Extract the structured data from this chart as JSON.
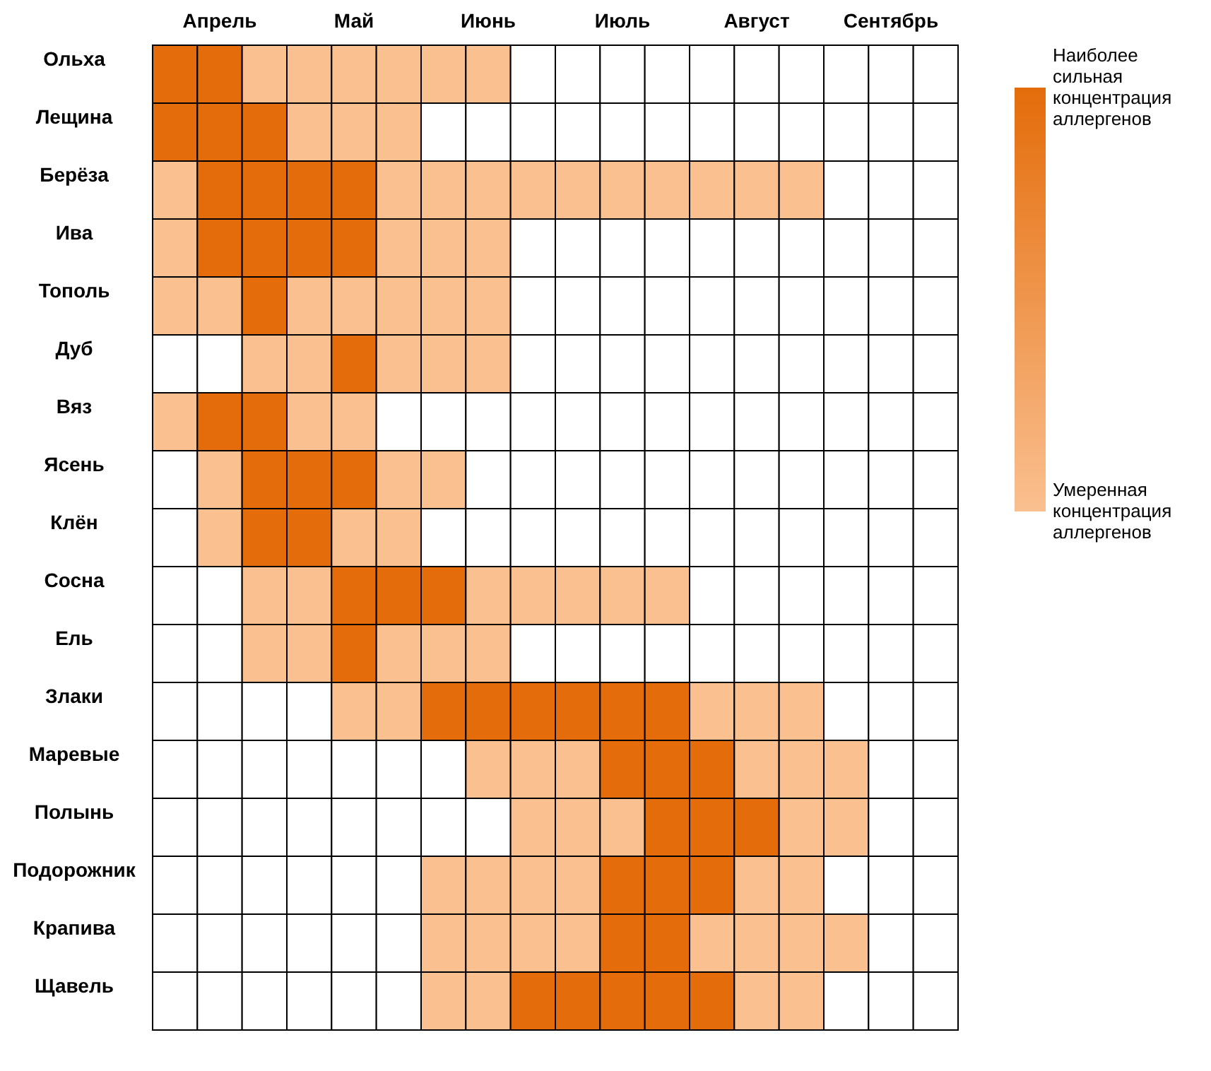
{
  "chart_data": {
    "type": "heatmap",
    "categories": [
      null,
      "Апрель",
      null,
      null,
      "Май",
      null,
      null,
      "Июнь",
      null,
      null,
      "Июль",
      null,
      null,
      "Август",
      null,
      null,
      "Сентябрь",
      null
    ],
    "y_categories": [
      "Ольха",
      "Лещина",
      "Берёза",
      "Ива",
      "Тополь",
      "Дуб",
      "Вяз",
      "Ясень",
      "Клён",
      "Сосна",
      "Ель",
      "Злаки",
      "Маревые",
      "Полынь",
      "Подорожник",
      "Крапива",
      "Щавель"
    ],
    "cells": [
      [
        2,
        2,
        1,
        1,
        1,
        1,
        1,
        1,
        null,
        null,
        null,
        null,
        null,
        null,
        null,
        null,
        null,
        null
      ],
      [
        2,
        2,
        2,
        1,
        1,
        1,
        null,
        null,
        null,
        null,
        null,
        null,
        null,
        null,
        null,
        null,
        null,
        null
      ],
      [
        1,
        2,
        2,
        2,
        2,
        1,
        1,
        1,
        1,
        1,
        1,
        1,
        1,
        1,
        1,
        null,
        null,
        null
      ],
      [
        1,
        2,
        2,
        2,
        2,
        1,
        1,
        1,
        null,
        null,
        null,
        null,
        null,
        null,
        null,
        null,
        null,
        null
      ],
      [
        1,
        1,
        2,
        1,
        1,
        1,
        1,
        1,
        null,
        null,
        null,
        null,
        null,
        null,
        null,
        null,
        null,
        null
      ],
      [
        null,
        null,
        1,
        1,
        2,
        1,
        1,
        1,
        null,
        null,
        null,
        null,
        null,
        null,
        null,
        null,
        null,
        null
      ],
      [
        1,
        2,
        2,
        1,
        1,
        null,
        null,
        null,
        null,
        null,
        null,
        null,
        null,
        null,
        null,
        null,
        null,
        null
      ],
      [
        null,
        1,
        2,
        2,
        2,
        1,
        1,
        null,
        null,
        null,
        null,
        null,
        null,
        null,
        null,
        null,
        null,
        null
      ],
      [
        null,
        1,
        2,
        2,
        1,
        1,
        null,
        null,
        null,
        null,
        null,
        null,
        null,
        null,
        null,
        null,
        null,
        null
      ],
      [
        null,
        null,
        1,
        1,
        2,
        2,
        2,
        1,
        1,
        1,
        1,
        1,
        null,
        null,
        null,
        null,
        null,
        null
      ],
      [
        null,
        null,
        1,
        1,
        2,
        1,
        1,
        1,
        null,
        null,
        null,
        null,
        null,
        null,
        null,
        null,
        null,
        null
      ],
      [
        null,
        null,
        null,
        null,
        1,
        1,
        2,
        2,
        2,
        2,
        2,
        2,
        1,
        1,
        1,
        null,
        null,
        null
      ],
      [
        null,
        null,
        null,
        null,
        null,
        null,
        null,
        1,
        1,
        1,
        2,
        2,
        2,
        1,
        1,
        1,
        null,
        null
      ],
      [
        null,
        null,
        null,
        null,
        null,
        null,
        null,
        null,
        1,
        1,
        1,
        2,
        2,
        2,
        1,
        1,
        null,
        null
      ],
      [
        null,
        null,
        null,
        null,
        null,
        null,
        1,
        1,
        1,
        1,
        2,
        2,
        2,
        1,
        1,
        null,
        null,
        null
      ],
      [
        null,
        null,
        null,
        null,
        null,
        null,
        1,
        1,
        1,
        1,
        2,
        2,
        1,
        1,
        1,
        1,
        null,
        null
      ],
      [
        null,
        null,
        null,
        null,
        null,
        null,
        1,
        1,
        2,
        2,
        2,
        2,
        2,
        1,
        1,
        null,
        null,
        null
      ]
    ],
    "colors": [
      "#fac090",
      "#e46c0a"
    ],
    "clim": [
      1,
      2
    ],
    "cticks": [
      {
        "value": 1,
        "label": "Умеренная концентрация аллергенов"
      },
      {
        "value": 2,
        "label": "Наиболее сильная концентрация аллергенов"
      }
    ]
  }
}
